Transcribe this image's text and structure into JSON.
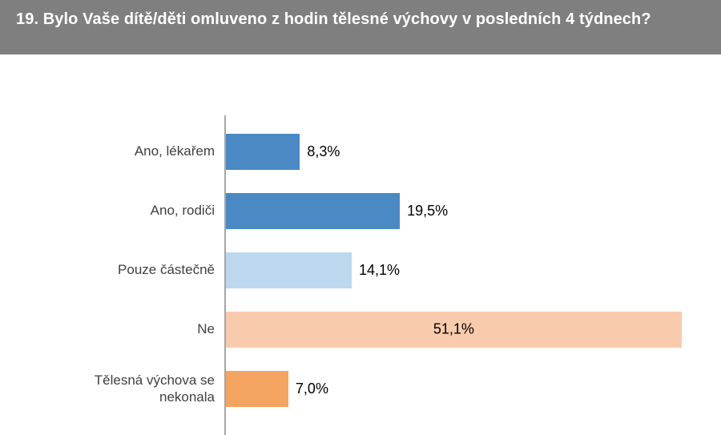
{
  "chart_data": {
    "type": "bar",
    "orientation": "horizontal",
    "title": "19. Bylo Vaše dítě/děti omluveno z hodin tělesné výchovy v posledních 4 týdnech?",
    "categories": [
      "Ano, lékařem",
      "Ano, rodiči",
      "Pouze částečně",
      "Ne",
      "Tělesná výchova se nekonala"
    ],
    "values": [
      8.3,
      19.5,
      14.1,
      51.1,
      7.0
    ],
    "value_labels": [
      "8,3%",
      "19,5%",
      "14,1%",
      "51,1%",
      "7,0%"
    ],
    "bar_colors": [
      "#4A89C4",
      "#4A89C4",
      "#BDD7EE",
      "#F8CBAD",
      "#F4A460"
    ],
    "value_label_position": [
      "outside",
      "outside",
      "outside",
      "inside",
      "outside"
    ],
    "xlim": [
      0,
      53
    ],
    "xlabel": "",
    "ylabel": "",
    "grid": false,
    "legend": "none",
    "axis_color": "#A6A6A6",
    "title_bar_color": "#7F7F7F",
    "category_text_color": "#404040",
    "value_text_color": "#000000"
  }
}
